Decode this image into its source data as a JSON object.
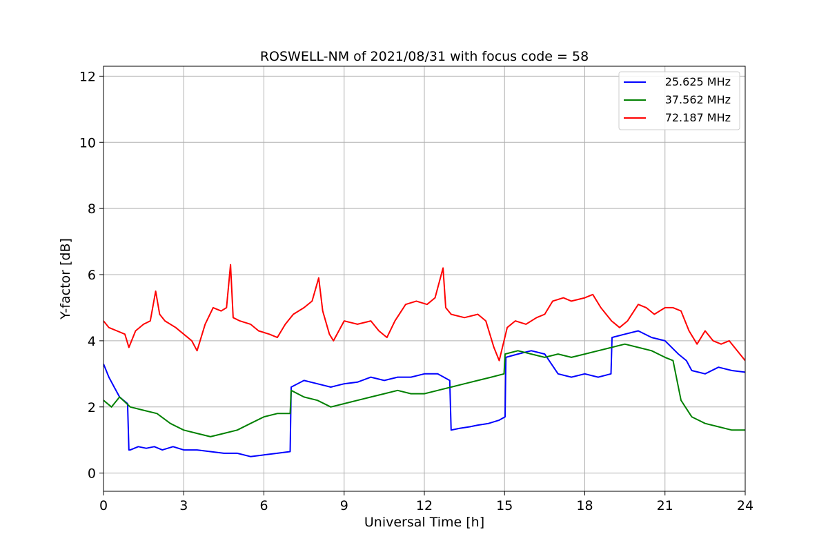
{
  "chart_data": {
    "type": "line",
    "title": "ROSWELL-NM of 2021/08/31 with focus code = 58",
    "xlabel": "Universal Time [h]",
    "ylabel": "Y-factor [dB]",
    "xlim": [
      0,
      24
    ],
    "ylim": [
      -0.55,
      12.3
    ],
    "xticks": [
      0,
      3,
      6,
      9,
      12,
      15,
      18,
      21,
      24
    ],
    "yticks": [
      0,
      2,
      4,
      6,
      8,
      10,
      12
    ],
    "grid": true,
    "legend_position": "upper right",
    "series": [
      {
        "name": "25.625 MHz",
        "color": "#0000ff",
        "x": [
          0.0,
          0.2,
          0.4,
          0.6,
          0.9,
          0.95,
          1.0,
          1.3,
          1.6,
          1.9,
          2.2,
          2.6,
          3.0,
          3.5,
          4.0,
          4.5,
          5.0,
          5.5,
          6.0,
          6.5,
          6.98,
          7.02,
          7.5,
          8.0,
          8.5,
          9.0,
          9.5,
          10.0,
          10.5,
          11.0,
          11.5,
          12.0,
          12.5,
          12.95,
          13.0,
          13.3,
          13.7,
          14.0,
          14.4,
          14.8,
          15.02,
          15.05,
          15.5,
          16.0,
          16.5,
          17.0,
          17.5,
          18.0,
          18.5,
          18.98,
          19.02,
          19.5,
          20.0,
          20.5,
          21.0,
          21.5,
          21.8,
          22.0,
          22.5,
          23.0,
          23.5,
          24.0
        ],
        "y": [
          3.3,
          2.9,
          2.6,
          2.3,
          2.1,
          0.7,
          0.7,
          0.8,
          0.75,
          0.8,
          0.7,
          0.8,
          0.7,
          0.7,
          0.65,
          0.6,
          0.6,
          0.5,
          0.55,
          0.6,
          0.65,
          2.6,
          2.8,
          2.7,
          2.6,
          2.7,
          2.75,
          2.9,
          2.8,
          2.9,
          2.9,
          3.0,
          3.0,
          2.8,
          1.3,
          1.35,
          1.4,
          1.45,
          1.5,
          1.6,
          1.7,
          3.5,
          3.6,
          3.7,
          3.6,
          3.0,
          2.9,
          3.0,
          2.9,
          3.0,
          4.1,
          4.2,
          4.3,
          4.1,
          4.0,
          3.6,
          3.4,
          3.1,
          3.0,
          3.2,
          3.1,
          3.05
        ]
      },
      {
        "name": "37.562 MHz",
        "color": "#008000",
        "x": [
          0.0,
          0.3,
          0.6,
          1.0,
          1.5,
          2.0,
          2.5,
          3.0,
          3.5,
          4.0,
          4.5,
          5.0,
          5.5,
          6.0,
          6.5,
          6.98,
          7.02,
          7.5,
          8.0,
          8.5,
          9.0,
          9.5,
          10.0,
          10.5,
          11.0,
          11.5,
          12.0,
          12.5,
          13.0,
          13.5,
          14.0,
          14.5,
          14.98,
          15.02,
          15.5,
          16.0,
          16.5,
          17.0,
          17.5,
          18.0,
          18.5,
          19.0,
          19.5,
          20.0,
          20.5,
          21.0,
          21.3,
          21.6,
          22.0,
          22.5,
          23.0,
          23.5,
          24.0
        ],
        "y": [
          2.2,
          2.0,
          2.3,
          2.0,
          1.9,
          1.8,
          1.5,
          1.3,
          1.2,
          1.1,
          1.2,
          1.3,
          1.5,
          1.7,
          1.8,
          1.8,
          2.5,
          2.3,
          2.2,
          2.0,
          2.1,
          2.2,
          2.3,
          2.4,
          2.5,
          2.4,
          2.4,
          2.5,
          2.6,
          2.7,
          2.8,
          2.9,
          3.0,
          3.6,
          3.7,
          3.6,
          3.5,
          3.6,
          3.5,
          3.6,
          3.7,
          3.8,
          3.9,
          3.8,
          3.7,
          3.5,
          3.4,
          2.2,
          1.7,
          1.5,
          1.4,
          1.3,
          1.3
        ]
      },
      {
        "name": "72.187 MHz",
        "color": "#ff0000",
        "x": [
          0.0,
          0.2,
          0.5,
          0.8,
          0.95,
          1.2,
          1.5,
          1.75,
          1.95,
          2.1,
          2.3,
          2.7,
          3.0,
          3.3,
          3.5,
          3.8,
          4.1,
          4.4,
          4.6,
          4.75,
          4.85,
          5.1,
          5.5,
          5.8,
          6.2,
          6.5,
          6.8,
          7.1,
          7.5,
          7.8,
          8.05,
          8.2,
          8.45,
          8.6,
          9.0,
          9.5,
          10.0,
          10.3,
          10.6,
          10.9,
          11.3,
          11.7,
          12.1,
          12.4,
          12.7,
          12.8,
          13.0,
          13.5,
          14.0,
          14.3,
          14.6,
          14.8,
          15.1,
          15.4,
          15.8,
          16.2,
          16.5,
          16.8,
          17.2,
          17.5,
          18.0,
          18.3,
          18.6,
          19.0,
          19.3,
          19.6,
          20.0,
          20.3,
          20.6,
          21.0,
          21.3,
          21.6,
          21.9,
          22.2,
          22.5,
          22.8,
          23.1,
          23.4,
          23.7,
          24.0
        ],
        "y": [
          4.6,
          4.4,
          4.3,
          4.2,
          3.8,
          4.3,
          4.5,
          4.6,
          5.5,
          4.8,
          4.6,
          4.4,
          4.2,
          4.0,
          3.7,
          4.5,
          5.0,
          4.9,
          5.0,
          6.3,
          4.7,
          4.6,
          4.5,
          4.3,
          4.2,
          4.1,
          4.5,
          4.8,
          5.0,
          5.2,
          5.9,
          4.9,
          4.2,
          4.0,
          4.6,
          4.5,
          4.6,
          4.3,
          4.1,
          4.6,
          5.1,
          5.2,
          5.1,
          5.3,
          6.2,
          5.0,
          4.8,
          4.7,
          4.8,
          4.6,
          3.8,
          3.4,
          4.4,
          4.6,
          4.5,
          4.7,
          4.8,
          5.2,
          5.3,
          5.2,
          5.3,
          5.4,
          5.0,
          4.6,
          4.4,
          4.6,
          5.1,
          5.0,
          4.8,
          5.0,
          5.0,
          4.9,
          4.3,
          3.9,
          4.3,
          4.0,
          3.9,
          4.0,
          3.7,
          3.4
        ]
      }
    ]
  }
}
